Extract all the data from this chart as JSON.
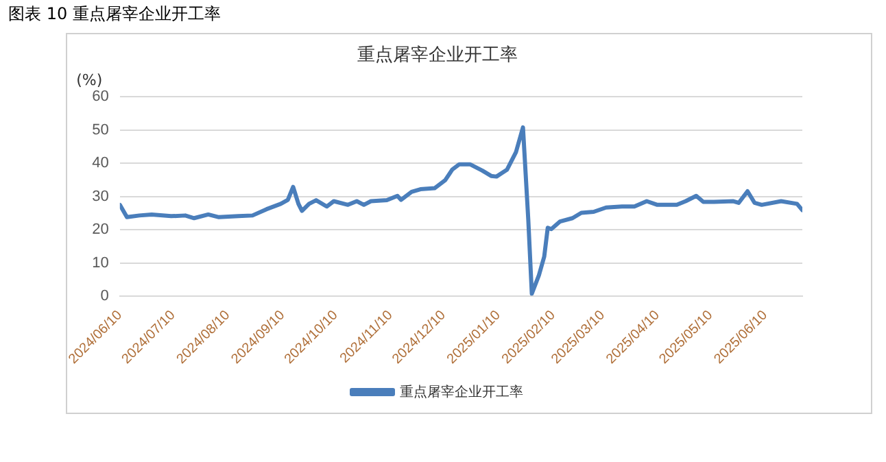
{
  "chart_data": {
    "type": "line",
    "title": "重点屠宰企业开工率",
    "ylabel": "(%)",
    "annotations": [
      "图表 10 重点屠宰企业开工率"
    ],
    "x": [
      "2024-06-10",
      "2024-06-14",
      "2024-06-21",
      "2024-06-28",
      "2024-07-09",
      "2024-07-17",
      "2024-07-22",
      "2024-07-30",
      "2024-08-05",
      "2024-08-16",
      "2024-08-24",
      "2024-09-01",
      "2024-09-09",
      "2024-09-13",
      "2024-09-16",
      "2024-09-19",
      "2024-09-21",
      "2024-09-25",
      "2024-09-29",
      "2024-10-05",
      "2024-10-09",
      "2024-10-17",
      "2024-10-22",
      "2024-10-26",
      "2024-10-30",
      "2024-11-08",
      "2024-11-14",
      "2024-11-16",
      "2024-11-22",
      "2024-11-27",
      "2024-12-05",
      "2024-12-11",
      "2024-12-15",
      "2024-12-19",
      "2024-12-25",
      "2025-01-01",
      "2025-01-06",
      "2025-01-09",
      "2025-01-15",
      "2025-01-20",
      "2025-01-24",
      "2025-01-27",
      "2025-01-29",
      "2025-02-02",
      "2025-02-05",
      "2025-02-07",
      "2025-02-09",
      "2025-02-14",
      "2025-02-21",
      "2025-02-26",
      "2025-03-05",
      "2025-03-12",
      "2025-03-21",
      "2025-03-28",
      "2025-04-04",
      "2025-04-10",
      "2025-04-21",
      "2025-04-26",
      "2025-05-02",
      "2025-05-06",
      "2025-05-12",
      "2025-05-23",
      "2025-05-26",
      "2025-05-31",
      "2025-06-04",
      "2025-06-08",
      "2025-06-19",
      "2025-06-28",
      "2025-07-01"
    ],
    "series": [
      {
        "name": "重点屠宰企业开工率",
        "color": "#4a7ebb",
        "values": [
          27.5,
          23.8,
          24.3,
          24.6,
          24.1,
          24.3,
          23.5,
          24.6,
          23.8,
          24.1,
          24.3,
          26.2,
          27.8,
          29,
          32.9,
          27.8,
          25.7,
          27.8,
          28.9,
          27,
          28.6,
          27.5,
          28.6,
          27.5,
          28.6,
          28.9,
          30.2,
          29,
          31.4,
          32.2,
          32.5,
          34.9,
          38.1,
          39.7,
          39.7,
          37.8,
          36.2,
          36,
          38.1,
          43.3,
          50.8,
          23,
          0.8,
          6.3,
          11.9,
          20.6,
          20.2,
          22.5,
          23.5,
          25.1,
          25.4,
          26.7,
          27,
          27,
          28.6,
          27.5,
          27.5,
          28.6,
          30.2,
          28.4,
          28.4,
          28.6,
          28.1,
          31.6,
          28.1,
          27.5,
          28.6,
          27.8,
          25.9
        ]
      }
    ],
    "xlim": [
      "2024-06-10",
      "2025-07-01"
    ],
    "xticks": [
      {
        "value": "2024-06-10",
        "label": "2024/06/10"
      },
      {
        "value": "2024-07-10",
        "label": "2024/07/10"
      },
      {
        "value": "2024-08-10",
        "label": "2024/08/10"
      },
      {
        "value": "2024-09-10",
        "label": "2024/09/10"
      },
      {
        "value": "2024-10-10",
        "label": "2024/10/10"
      },
      {
        "value": "2024-11-10",
        "label": "2024/11/10"
      },
      {
        "value": "2024-12-10",
        "label": "2024/12/10"
      },
      {
        "value": "2025-01-10",
        "label": "2025/01/10"
      },
      {
        "value": "2025-02-10",
        "label": "2025/02/10"
      },
      {
        "value": "2025-03-10",
        "label": "2025/03/10"
      },
      {
        "value": "2025-04-10",
        "label": "2025/04/10"
      },
      {
        "value": "2025-05-10",
        "label": "2025/05/10"
      },
      {
        "value": "2025-06-10",
        "label": "2025/06/10"
      }
    ],
    "ylim": [
      0,
      60
    ],
    "yticks": [
      0,
      10,
      20,
      30,
      40,
      50,
      60
    ],
    "grid": "y",
    "legend": "bottom",
    "marker": "none",
    "line_style": "solid"
  }
}
